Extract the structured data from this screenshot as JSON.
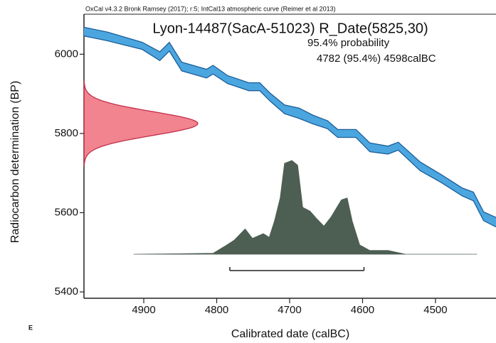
{
  "chart_data": {
    "type": "calibration",
    "header": "OxCal v4.3.2 Bronk Ramsey (2017); r:5; IntCal13 atmospheric curve (Reimer et al 2013)",
    "title": "Lyon-14487(SacA-51023) R_Date(5825,30)",
    "probability_label": "95.4% probability",
    "range_label": "4782 (95.4%) 4598calBC",
    "range": [
      4782,
      4598
    ],
    "x_label": "Calibrated date (calBC)",
    "y_label": "Radiocarbon determination (BP)",
    "corner_label": "E",
    "measurement": {
      "mean": 5825,
      "sigma": 30,
      "color": "#f2848f",
      "edge": "#c2304a"
    },
    "xlim": [
      4982,
      4417
    ],
    "ylim": [
      5384,
      6101
    ],
    "xticks": [
      4900,
      4800,
      4700,
      4600,
      4500
    ],
    "yticks": [
      5400,
      5600,
      5800,
      6000
    ],
    "curve": {
      "color": "#4ba6e0",
      "edge": "#1d5d97",
      "x": [
        4982,
        4950,
        4902,
        4878,
        4865,
        4848,
        4814,
        4805,
        4785,
        4756,
        4741,
        4727,
        4707,
        4687,
        4668,
        4648,
        4634,
        4609,
        4590,
        4565,
        4551,
        4521,
        4492,
        4463,
        4448,
        4434,
        4417
      ],
      "upper": [
        6068,
        6056,
        6030,
        6006,
        6030,
        5980,
        5962,
        5972,
        5946,
        5928,
        5928,
        5902,
        5872,
        5864,
        5846,
        5832,
        5810,
        5810,
        5776,
        5768,
        5778,
        5728,
        5696,
        5662,
        5652,
        5602,
        5588
      ],
      "lower": [
        6046,
        6034,
        6012,
        5984,
        6008,
        5958,
        5940,
        5950,
        5926,
        5908,
        5908,
        5882,
        5850,
        5838,
        5824,
        5812,
        5790,
        5790,
        5754,
        5748,
        5758,
        5706,
        5676,
        5642,
        5630,
        5580,
        5564
      ]
    },
    "posterior": {
      "color": "#4d5f53",
      "x": [
        4914,
        4805,
        4790,
        4776,
        4761,
        4751,
        4736,
        4728,
        4721,
        4713,
        4707,
        4697,
        4689,
        4682,
        4672,
        4663,
        4653,
        4643,
        4629,
        4621,
        4614,
        4604,
        4590,
        4565,
        4541,
        4443
      ],
      "density": [
        0,
        0.01,
        0.08,
        0.15,
        0.27,
        0.17,
        0.22,
        0.18,
        0.35,
        0.6,
        0.97,
        1.0,
        0.95,
        0.5,
        0.46,
        0.38,
        0.3,
        0.4,
        0.58,
        0.6,
        0.35,
        0.1,
        0.04,
        0.04,
        0,
        0
      ]
    }
  }
}
